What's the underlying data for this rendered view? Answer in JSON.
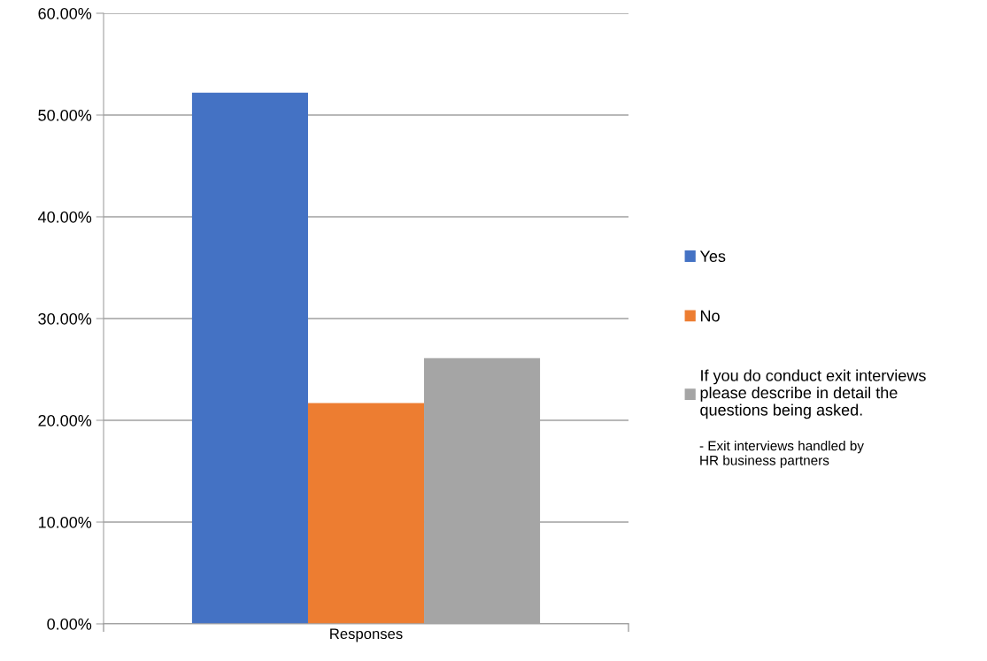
{
  "chart_data": {
    "type": "bar",
    "categories": [
      "Responses"
    ],
    "series": [
      {
        "name": "Yes",
        "color": "#4472c4",
        "values": [
          52.2
        ]
      },
      {
        "name": "No",
        "color": "#ed7d31",
        "values": [
          21.7
        ]
      },
      {
        "name": "If you do conduct exit interviews please describe in detail the questions being asked.",
        "color": "#a5a5a5",
        "values": [
          26.1
        ]
      }
    ],
    "ylim": [
      0,
      60
    ],
    "yticks": [
      {
        "value": 0,
        "label": "0.00%"
      },
      {
        "value": 10,
        "label": "10.00%"
      },
      {
        "value": 20,
        "label": "20.00%"
      },
      {
        "value": 30,
        "label": "30.00%"
      },
      {
        "value": 40,
        "label": "40.00%"
      },
      {
        "value": 50,
        "label": "50.00%"
      },
      {
        "value": 60,
        "label": "60.00%"
      }
    ],
    "grid": "y",
    "legend": "right",
    "annotations": [
      "- Exit interviews handled by HR business partners"
    ]
  }
}
